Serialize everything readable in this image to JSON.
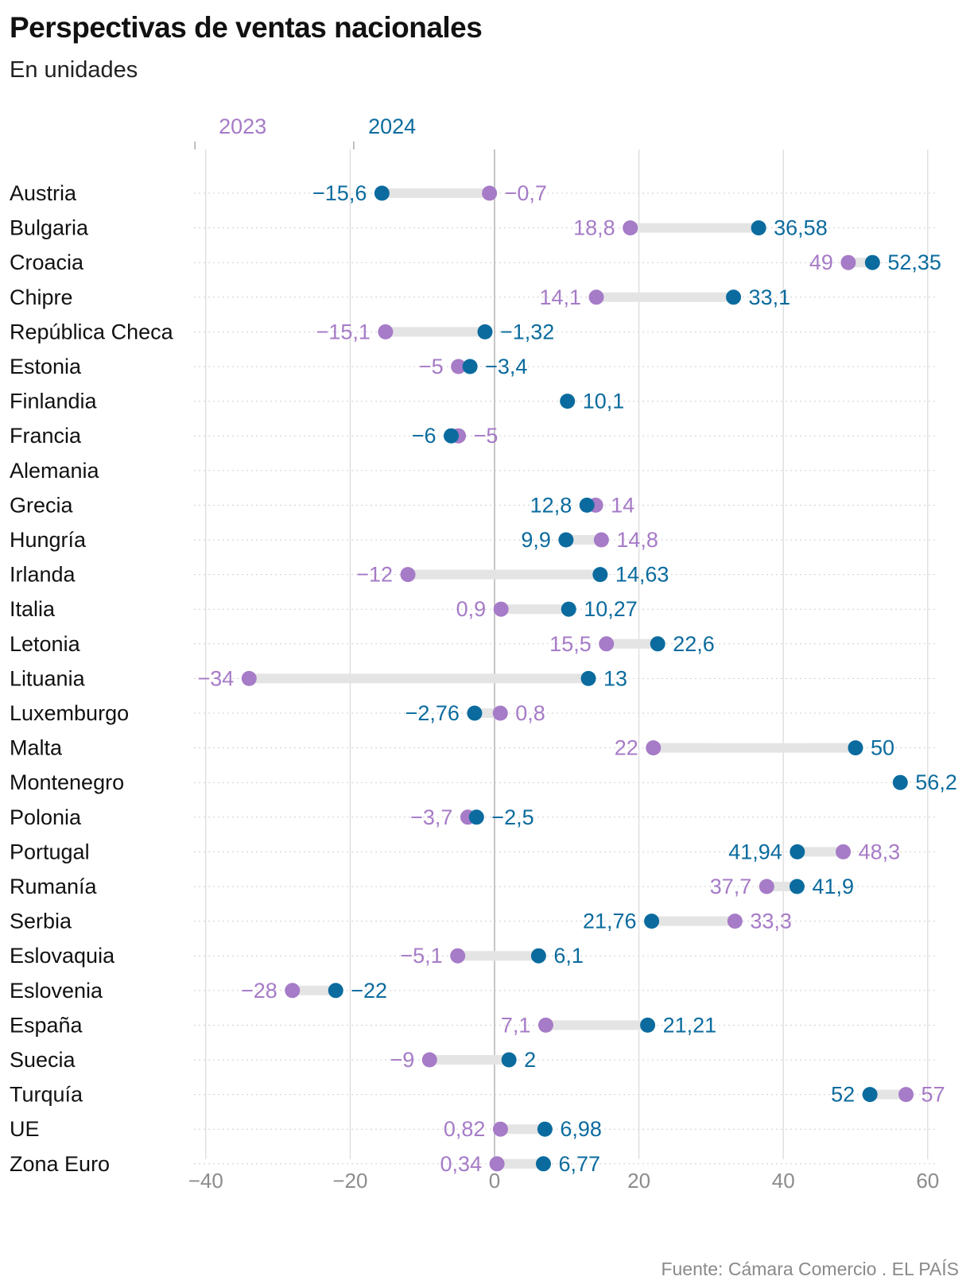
{
  "title": "Perspectivas de ventas nacionales",
  "subtitle": "En unidades",
  "source": "Fuente: Cámara Comercio . EL PAÍS",
  "colors": {
    "y2023": "#a67bc7",
    "y2024": "#0b6b9e",
    "connector": "#e4e4e4",
    "grid": "#d9d9d9",
    "zero": "#b8b8b8",
    "label": "#111111",
    "tick": "#8c8c8c"
  },
  "chart_data": {
    "type": "dumbbell",
    "series": [
      {
        "name": "2023",
        "color": "#a67bc7"
      },
      {
        "name": "2024",
        "color": "#0b6b9e"
      }
    ],
    "xlim": [
      -40,
      60
    ],
    "x_ticks": [
      {
        "value": -40,
        "label": "−40"
      },
      {
        "value": -20,
        "label": "−20"
      },
      {
        "value": 0,
        "label": "0"
      },
      {
        "value": 20,
        "label": "20"
      },
      {
        "value": 40,
        "label": "40"
      },
      {
        "value": 60,
        "label": "60"
      }
    ],
    "grid": true,
    "legend": "top",
    "rows": [
      {
        "label": "Austria",
        "v2023": -0.7,
        "t2023": "−0,7",
        "v2024": -15.6,
        "t2024": "−15,6"
      },
      {
        "label": "Bulgaria",
        "v2023": 18.8,
        "t2023": "18,8",
        "v2024": 36.58,
        "t2024": "36,58"
      },
      {
        "label": "Croacia",
        "v2023": 49,
        "t2023": "49",
        "v2024": 52.35,
        "t2024": "52,35"
      },
      {
        "label": "Chipre",
        "v2023": 14.1,
        "t2023": "14,1",
        "v2024": 33.1,
        "t2024": "33,1"
      },
      {
        "label": "República Checa",
        "v2023": -15.1,
        "t2023": "−15,1",
        "v2024": -1.32,
        "t2024": "−1,32"
      },
      {
        "label": "Estonia",
        "v2023": -5,
        "t2023": "−5",
        "v2024": -3.4,
        "t2024": "−3,4"
      },
      {
        "label": "Finlandia",
        "v2023": null,
        "t2023": "",
        "v2024": 10.1,
        "t2024": "10,1"
      },
      {
        "label": "Francia",
        "v2023": -5,
        "t2023": "−5",
        "v2024": -6,
        "t2024": "−6"
      },
      {
        "label": "Alemania",
        "v2023": null,
        "t2023": "",
        "v2024": null,
        "t2024": ""
      },
      {
        "label": "Grecia",
        "v2023": 14,
        "t2023": "14",
        "v2024": 12.8,
        "t2024": "12,8"
      },
      {
        "label": "Hungría",
        "v2023": 14.8,
        "t2023": "14,8",
        "v2024": 9.9,
        "t2024": "9,9"
      },
      {
        "label": "Irlanda",
        "v2023": -12,
        "t2023": "−12",
        "v2024": 14.63,
        "t2024": "14,63"
      },
      {
        "label": "Italia",
        "v2023": 0.9,
        "t2023": "0,9",
        "v2024": 10.27,
        "t2024": "10,27"
      },
      {
        "label": "Letonia",
        "v2023": 15.5,
        "t2023": "15,5",
        "v2024": 22.6,
        "t2024": "22,6"
      },
      {
        "label": "Lituania",
        "v2023": -34,
        "t2023": "−34",
        "v2024": 13,
        "t2024": "13"
      },
      {
        "label": "Luxemburgo",
        "v2023": 0.8,
        "t2023": "0,8",
        "v2024": -2.76,
        "t2024": "−2,76"
      },
      {
        "label": "Malta",
        "v2023": 22,
        "t2023": "22",
        "v2024": 50,
        "t2024": "50"
      },
      {
        "label": "Montenegro",
        "v2023": null,
        "t2023": "",
        "v2024": 56.2,
        "t2024": "56,2"
      },
      {
        "label": "Polonia",
        "v2023": -3.7,
        "t2023": "−3,7",
        "v2024": -2.5,
        "t2024": "−2,5"
      },
      {
        "label": "Portugal",
        "v2023": 48.3,
        "t2023": "48,3",
        "v2024": 41.94,
        "t2024": "41,94"
      },
      {
        "label": "Rumanía",
        "v2023": 37.7,
        "t2023": "37,7",
        "v2024": 41.9,
        "t2024": "41,9"
      },
      {
        "label": "Serbia",
        "v2023": 33.3,
        "t2023": "33,3",
        "v2024": 21.76,
        "t2024": "21,76"
      },
      {
        "label": "Eslovaquia",
        "v2023": -5.1,
        "t2023": "−5,1",
        "v2024": 6.1,
        "t2024": "6,1"
      },
      {
        "label": "Eslovenia",
        "v2023": -28,
        "t2023": "−28",
        "v2024": -22,
        "t2024": "−22"
      },
      {
        "label": "España",
        "v2023": 7.1,
        "t2023": "7,1",
        "v2024": 21.21,
        "t2024": "21,21"
      },
      {
        "label": "Suecia",
        "v2023": -9,
        "t2023": "−9",
        "v2024": 2,
        "t2024": "2"
      },
      {
        "label": "Turquía",
        "v2023": 57,
        "t2023": "57",
        "v2024": 52,
        "t2024": "52"
      },
      {
        "label": "UE",
        "v2023": 0.82,
        "t2023": "0,82",
        "v2024": 6.98,
        "t2024": "6,98"
      },
      {
        "label": "Zona Euro",
        "v2023": 0.34,
        "t2023": "0,34",
        "v2024": 6.77,
        "t2024": "6,77"
      }
    ]
  }
}
